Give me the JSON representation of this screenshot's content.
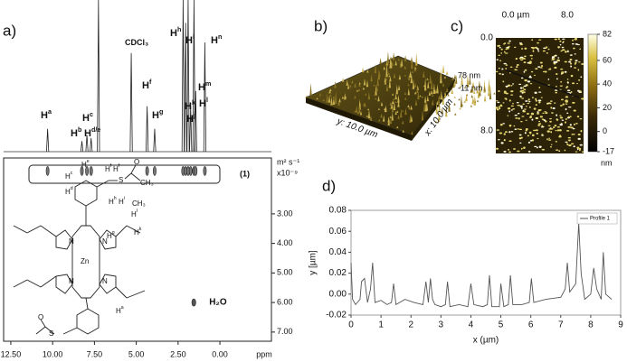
{
  "panel_labels": [
    "a)",
    "b)",
    "c)",
    "d)"
  ],
  "nmr": {
    "peak_labels": [
      {
        "text": "H",
        "sup": "a"
      },
      {
        "text": "H",
        "sup": "b"
      },
      {
        "text": "H",
        "sup": "c"
      },
      {
        "text": "H",
        "sup": "d/e"
      },
      {
        "text": "CDCl₃"
      },
      {
        "text": "H",
        "sup": "f"
      },
      {
        "text": "H",
        "sup": "g"
      },
      {
        "text": "H",
        "sup": "h"
      },
      {
        "text": "H",
        "sup": "i"
      },
      {
        "text": "H",
        "sup": "k"
      },
      {
        "text": "H",
        "sup": "j"
      },
      {
        "text": "H",
        "sup": "m"
      },
      {
        "text": "H",
        "sup": "l"
      },
      {
        "text": "H",
        "sup": "n"
      }
    ],
    "spectrum": {
      "ppm": [
        10.3,
        8.25,
        7.95,
        7.7,
        7.26,
        5.3,
        4.35,
        3.9,
        2.2,
        2.05,
        1.9,
        1.75,
        1.55,
        1.45,
        0.9
      ],
      "intensity": [
        15,
        7,
        11,
        9,
        100,
        65,
        30,
        15,
        100,
        85,
        100,
        30,
        100,
        40,
        72
      ],
      "ylim": [
        0,
        100
      ]
    },
    "spots": {
      "ppm": [
        10.3,
        8.25,
        7.95,
        7.7,
        4.35,
        3.9,
        2.2,
        2.05,
        1.9,
        1.75,
        1.55,
        1.45,
        0.9
      ],
      "D": [
        1.55,
        1.55,
        1.55,
        1.55,
        1.55,
        1.55,
        1.55,
        1.55,
        1.55,
        1.55,
        1.55,
        1.55,
        1.55
      ]
    },
    "water_spot": {
      "ppm": 1.56,
      "D": 6.0
    },
    "xlim": [
      12.93,
      -3.08
    ],
    "xticks": [
      {
        "value": 12.5,
        "label": "12.50"
      },
      {
        "value": 10,
        "label": "10.00"
      },
      {
        "value": 7.5,
        "label": "7.50"
      },
      {
        "value": 5,
        "label": "5.00"
      },
      {
        "value": 2.5,
        "label": "2.50"
      },
      {
        "value": 0,
        "label": "0.00"
      }
    ],
    "xlabel": "ppm",
    "ylabel_unit": "m² s⁻¹",
    "ylabel_scale": "x10⁻⁹",
    "ylim": [
      1.11,
      7.31
    ],
    "yticks": [
      {
        "value": 3,
        "label": "3.00"
      },
      {
        "value": 4,
        "label": "4.00"
      },
      {
        "value": 5,
        "label": "5.00"
      },
      {
        "value": 6,
        "label": "6.00"
      },
      {
        "value": 7,
        "label": "7.00"
      }
    ],
    "series_label": "(1)",
    "water_label": "H₂O",
    "structure_labels": [
      {
        "text": "H",
        "sup": "e"
      },
      {
        "text": "H",
        "sup": "f"
      },
      {
        "text": "H",
        "sup": "f"
      },
      {
        "text": "S"
      },
      {
        "text": "O"
      },
      {
        "text": "CH₃"
      },
      {
        "text": "H",
        "sup": "c"
      },
      {
        "text": "H",
        "sup": "d"
      },
      {
        "text": "H",
        "sup": "h"
      },
      {
        "text": "H",
        "sup": "i"
      },
      {
        "text": "CH₃"
      },
      {
        "text": "H",
        "sup": "l"
      },
      {
        "text": "H",
        "sup": "g"
      },
      {
        "text": "H",
        "sup": "k"
      },
      {
        "text": "N"
      },
      {
        "text": "N"
      },
      {
        "text": "N"
      },
      {
        "text": "N"
      },
      {
        "text": "Zn"
      },
      {
        "text": "H",
        "sup": "a"
      },
      {
        "text": "S"
      },
      {
        "text": "O"
      }
    ]
  },
  "afm_3d": {
    "z_max_label": "78 nm",
    "z_min_label": "-11 nm",
    "y_label": "y: 10.0 µm",
    "x_label": "x: 10.0 µm"
  },
  "afm_map": {
    "x_ticks": [
      "0.0 µm",
      "8.0"
    ],
    "y_ticks": [
      "0.0",
      "8.0"
    ],
    "colorbar_lim": [
      -17,
      82
    ],
    "colorbar_ticks": [
      -17,
      0,
      20,
      40,
      60,
      82
    ],
    "colorbar_unit": "nm"
  },
  "chart_data": {
    "type": "line",
    "x": [
      0,
      0.05,
      0.15,
      0.3,
      0.35,
      0.45,
      0.55,
      0.65,
      0.72,
      0.8,
      1.0,
      1.2,
      1.35,
      1.42,
      1.5,
      1.8,
      2.1,
      2.4,
      2.5,
      2.58,
      2.65,
      2.72,
      2.8,
      3.0,
      3.15,
      3.22,
      3.3,
      3.6,
      3.9,
      4.0,
      4.1,
      4.4,
      4.55,
      4.62,
      4.7,
      4.95,
      5.0,
      5.1,
      5.25,
      5.32,
      5.4,
      5.7,
      5.95,
      6.02,
      6.1,
      6.5,
      7.0,
      7.15,
      7.22,
      7.3,
      7.5,
      7.6,
      7.68,
      7.8,
      8.0,
      8.1,
      8.2,
      8.35,
      8.42,
      8.5,
      8.7
    ],
    "series": [
      {
        "name": "Profile 1",
        "color": "#555555",
        "values": [
          0.03,
          -0.005,
          -0.01,
          -0.005,
          0.012,
          0.015,
          -0.008,
          0.005,
          0.03,
          -0.008,
          -0.006,
          -0.01,
          -0.008,
          0.01,
          -0.01,
          -0.005,
          -0.008,
          -0.01,
          0.012,
          -0.008,
          0.015,
          -0.005,
          -0.01,
          -0.012,
          -0.01,
          0.012,
          -0.012,
          -0.01,
          -0.012,
          0.01,
          -0.01,
          -0.012,
          -0.01,
          0.018,
          -0.012,
          -0.012,
          0.01,
          -0.012,
          -0.01,
          0.018,
          -0.01,
          -0.01,
          -0.008,
          0.015,
          -0.008,
          -0.005,
          -0.003,
          0.005,
          0.03,
          0.002,
          0.01,
          0.068,
          0.02,
          -0.005,
          0.0,
          0.025,
          0.005,
          -0.005,
          0.04,
          0.0,
          -0.005
        ]
      }
    ],
    "xlim": [
      0,
      9
    ],
    "xticks": [
      0,
      1,
      2,
      3,
      4,
      5,
      6,
      7,
      8,
      9
    ],
    "ylim": [
      -0.02,
      0.08
    ],
    "yticks": [
      -0.02,
      {
        "value": 0,
        "label": "0.00"
      },
      0.02,
      0.04,
      0.06,
      0.08
    ],
    "xlabel": "x (µm)",
    "ylabel": "y [µm]",
    "legend": "upper right",
    "grid": false
  }
}
